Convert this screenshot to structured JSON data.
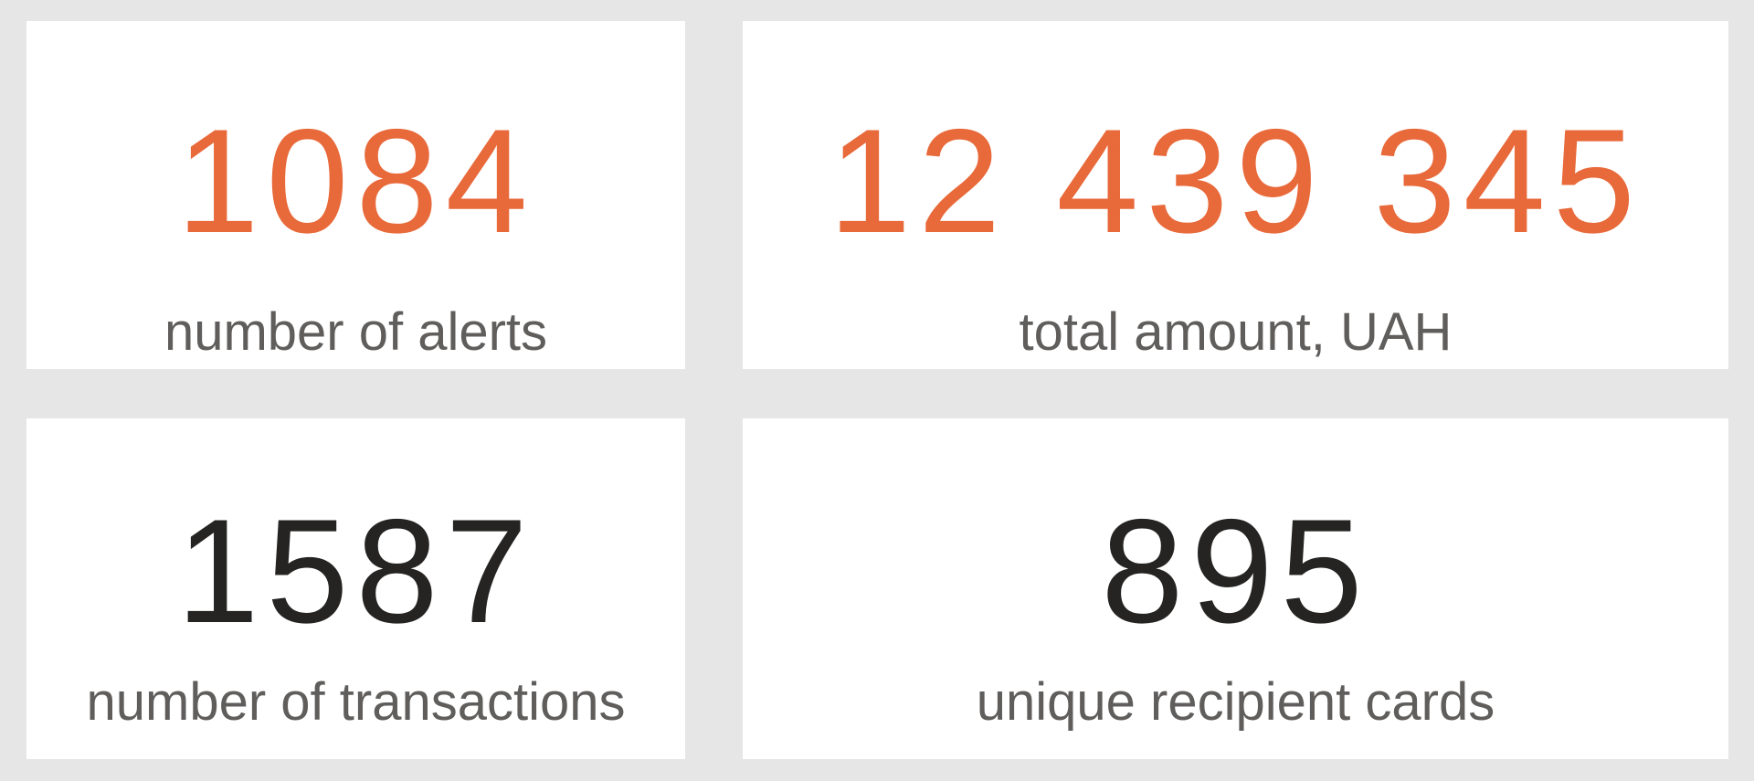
{
  "cards": [
    {
      "value": "1084",
      "label": "number of alerts",
      "color": "#e8693a"
    },
    {
      "value": "12 439 345",
      "label": "total amount, UAH",
      "color": "#e8693a"
    },
    {
      "value": "1587",
      "label": "number of transactions",
      "color": "#252423"
    },
    {
      "value": "895",
      "label": "unique recipient cards",
      "color": "#252423"
    }
  ]
}
